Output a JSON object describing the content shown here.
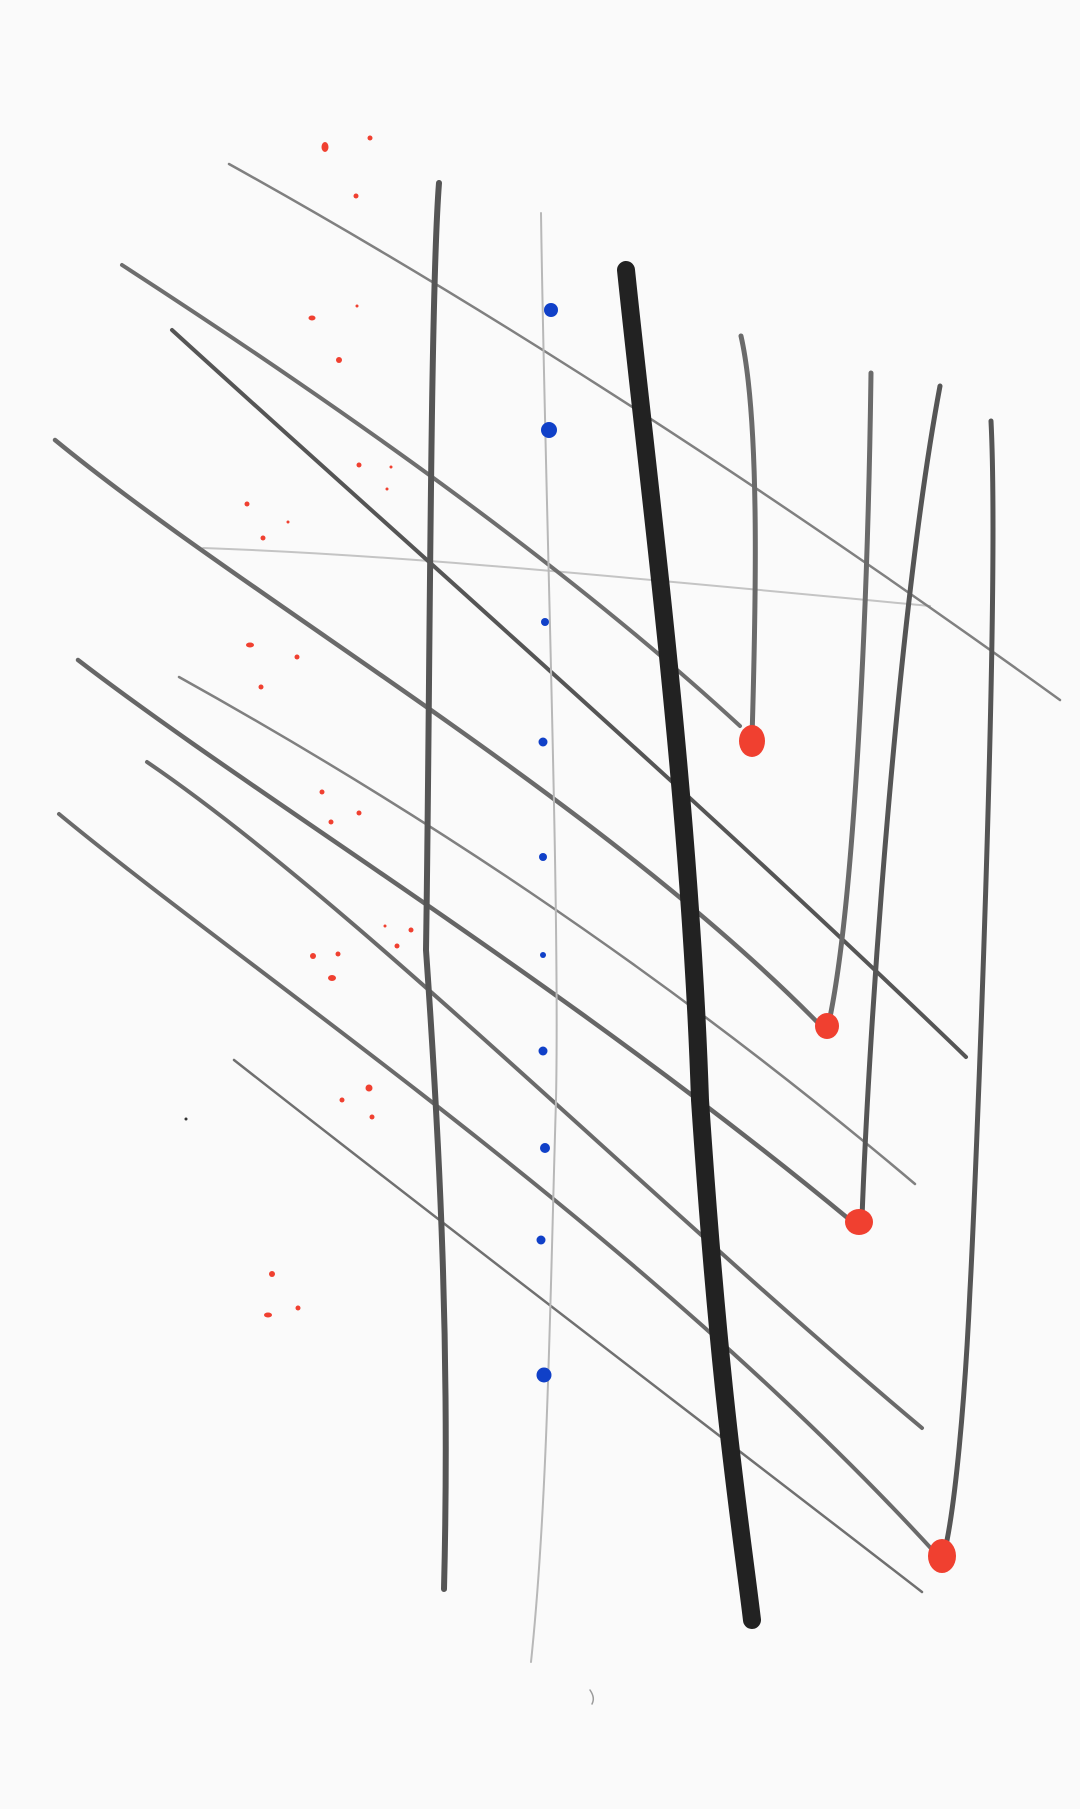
{
  "canvas": {
    "background": "#fafafa",
    "ink_black": "#222222",
    "ink_gray": "#6b6b6b",
    "ink_light": "#9a9a9a",
    "ink_faint": "#b8b8b8",
    "accent_red": "#f04030",
    "accent_blue": "#1040c8"
  },
  "artwork": {
    "kind": "abstract line drawing",
    "elements": [
      "diagonal-strokes",
      "vertical-strokes",
      "red-dot-terminals",
      "blue-dot-column",
      "red-speckle-cluster"
    ]
  }
}
